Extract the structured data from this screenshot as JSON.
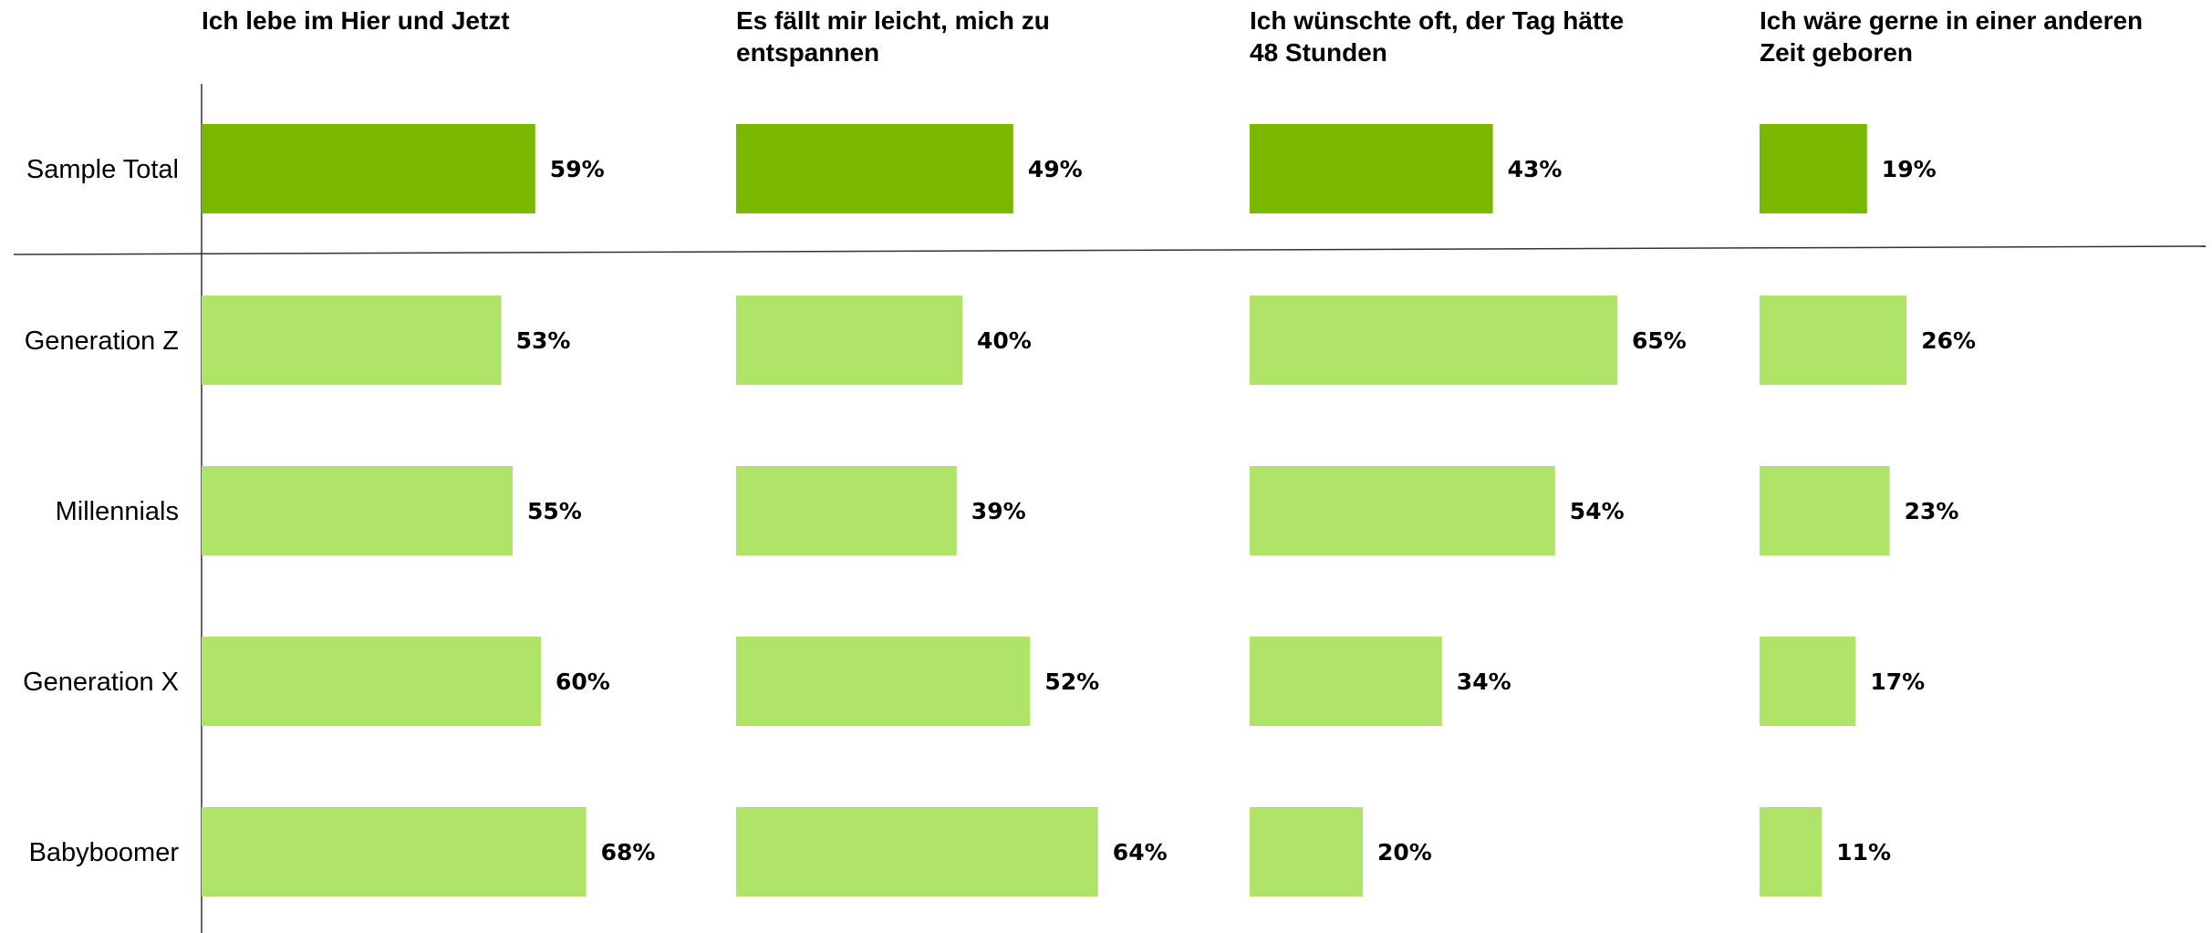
{
  "chart_data": {
    "type": "bar",
    "orientation": "horizontal",
    "categories": [
      "Sample Total",
      "Generation Z",
      "Millennials",
      "Generation X",
      "Babyboomer"
    ],
    "series": [
      {
        "name": "Ich lebe im Hier und Jetzt",
        "values": [
          59,
          53,
          55,
          60,
          68
        ],
        "labels": [
          "59%",
          "53%",
          "55%",
          "60%",
          "68%"
        ]
      },
      {
        "name": "Es fällt mir leicht, mich zu entspannen",
        "values": [
          49,
          40,
          39,
          52,
          64
        ],
        "labels": [
          "49%",
          "40%",
          "39%",
          "52%",
          "64%"
        ]
      },
      {
        "name": "Ich wünschte oft, der Tag hätte 48 Stunden",
        "values": [
          43,
          65,
          54,
          34,
          20
        ],
        "labels": [
          "43%",
          "65%",
          "54%",
          "34%",
          "20%"
        ]
      },
      {
        "name": "Ich wäre gerne in einer anderen Zeit geboren",
        "values": [
          19,
          26,
          23,
          17,
          11
        ],
        "labels": [
          "19%",
          "26%",
          "23%",
          "17%",
          "11%"
        ]
      }
    ],
    "unit": "%",
    "xlim": [
      0,
      100
    ],
    "grid": false,
    "legend": "none",
    "colors": {
      "total": "#7ab800",
      "groups": "#b0e468"
    }
  }
}
